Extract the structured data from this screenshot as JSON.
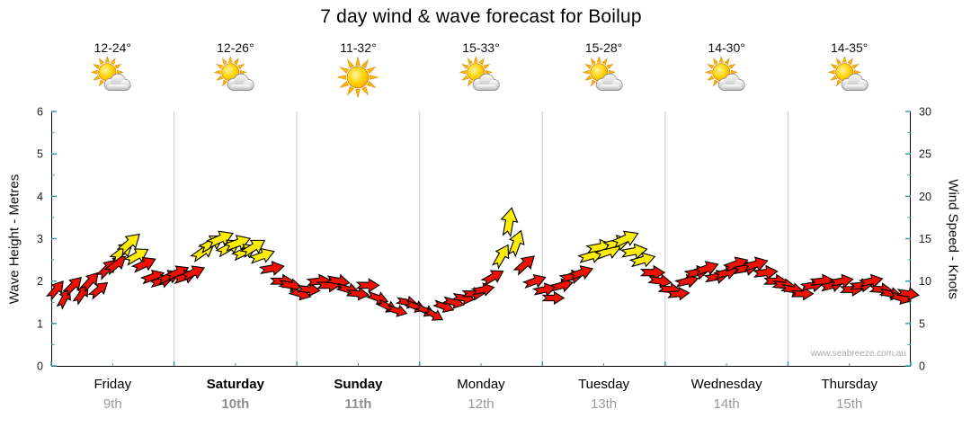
{
  "title": "7 day wind & wave forecast for Boilup",
  "watermark": "www.seabreeze.com.au",
  "colors": {
    "arrow_red": "#ee1000",
    "arrow_yellow": "#ffee00",
    "tick": "#2f9fae",
    "grid": "#cccccc",
    "axis": "#000000"
  },
  "days": [
    {
      "name": "Friday",
      "date": "9th",
      "temp": "12-24°",
      "icon": "partly-cloudy",
      "weekend": false
    },
    {
      "name": "Saturday",
      "date": "10th",
      "temp": "12-26°",
      "icon": "partly-cloudy",
      "weekend": true
    },
    {
      "name": "Sunday",
      "date": "11th",
      "temp": "11-32°",
      "icon": "sunny",
      "weekend": true
    },
    {
      "name": "Monday",
      "date": "12th",
      "temp": "15-33°",
      "icon": "partly-cloudy",
      "weekend": false
    },
    {
      "name": "Tuesday",
      "date": "13th",
      "temp": "15-28°",
      "icon": "partly-cloudy",
      "weekend": false
    },
    {
      "name": "Wednesday",
      "date": "14th",
      "temp": "14-30°",
      "icon": "partly-cloudy",
      "weekend": false
    },
    {
      "name": "Thursday",
      "date": "15th",
      "temp": "14-35°",
      "icon": "partly-cloudy",
      "weekend": false
    }
  ],
  "chart_data": {
    "type": "scatter",
    "title": "7 day wind & wave forecast for Boilup",
    "left_axis": {
      "label": "Wave Height - Metres",
      "min": 0,
      "max": 6,
      "ticks": [
        0,
        1,
        2,
        3,
        4,
        5,
        6
      ]
    },
    "right_axis": {
      "label": "Wind Speed - Knots",
      "min": 0,
      "max": 30,
      "ticks": [
        0,
        5,
        10,
        15,
        20,
        25,
        30
      ]
    },
    "x_categories": [
      "Friday 9th",
      "Saturday 10th",
      "Sunday 11th",
      "Monday 12th",
      "Tuesday 13th",
      "Wednesday 14th",
      "Thursday 15th"
    ],
    "grid": "vertical-day-lines",
    "legend": "none",
    "arrows": [
      {
        "x": 0.04,
        "knots": 9,
        "dir": -50,
        "color": "red"
      },
      {
        "x": 0.11,
        "knots": 8,
        "dir": -62,
        "color": "red"
      },
      {
        "x": 0.18,
        "knots": 9.5,
        "dir": -45,
        "color": "red"
      },
      {
        "x": 0.25,
        "knots": 8.5,
        "dir": -55,
        "color": "red"
      },
      {
        "x": 0.32,
        "knots": 10,
        "dir": -48,
        "color": "red"
      },
      {
        "x": 0.39,
        "knots": 9,
        "dir": -40,
        "color": "red"
      },
      {
        "x": 0.46,
        "knots": 11.5,
        "dir": -45,
        "color": "red"
      },
      {
        "x": 0.53,
        "knots": 12,
        "dir": -40,
        "color": "red"
      },
      {
        "x": 0.58,
        "knots": 13.5,
        "dir": -38,
        "color": "yellow"
      },
      {
        "x": 0.64,
        "knots": 14.5,
        "dir": -42,
        "color": "yellow"
      },
      {
        "x": 0.7,
        "knots": 13,
        "dir": -30,
        "color": "yellow"
      },
      {
        "x": 0.76,
        "knots": 12,
        "dir": -25,
        "color": "red"
      },
      {
        "x": 0.83,
        "knots": 10.5,
        "dir": -20,
        "color": "red"
      },
      {
        "x": 0.9,
        "knots": 10,
        "dir": -15,
        "color": "red"
      },
      {
        "x": 0.96,
        "knots": 10.5,
        "dir": -22,
        "color": "red"
      },
      {
        "x": 1.03,
        "knots": 11,
        "dir": -25,
        "color": "red"
      },
      {
        "x": 1.09,
        "knots": 10.5,
        "dir": -18,
        "color": "red"
      },
      {
        "x": 1.16,
        "knots": 11,
        "dir": -24,
        "color": "red"
      },
      {
        "x": 1.24,
        "knots": 13.5,
        "dir": -35,
        "color": "yellow"
      },
      {
        "x": 1.31,
        "knots": 14.5,
        "dir": -30,
        "color": "yellow"
      },
      {
        "x": 1.38,
        "knots": 15,
        "dir": -24,
        "color": "yellow"
      },
      {
        "x": 1.45,
        "knots": 14,
        "dir": -30,
        "color": "yellow"
      },
      {
        "x": 1.52,
        "knots": 14.5,
        "dir": -20,
        "color": "yellow"
      },
      {
        "x": 1.58,
        "knots": 13.5,
        "dir": -26,
        "color": "yellow"
      },
      {
        "x": 1.65,
        "knots": 14,
        "dir": -32,
        "color": "yellow"
      },
      {
        "x": 1.72,
        "knots": 13,
        "dir": -20,
        "color": "yellow"
      },
      {
        "x": 1.8,
        "knots": 11.5,
        "dir": -10,
        "color": "red"
      },
      {
        "x": 1.88,
        "knots": 10,
        "dir": 0,
        "color": "red"
      },
      {
        "x": 1.95,
        "knots": 9.5,
        "dir": 10,
        "color": "red"
      },
      {
        "x": 2.03,
        "knots": 8.5,
        "dir": 16,
        "color": "red"
      },
      {
        "x": 2.1,
        "knots": 9,
        "dir": 6,
        "color": "red"
      },
      {
        "x": 2.18,
        "knots": 10,
        "dir": -6,
        "color": "red"
      },
      {
        "x": 2.26,
        "knots": 9.5,
        "dir": 0,
        "color": "red"
      },
      {
        "x": 2.34,
        "knots": 10,
        "dir": 10,
        "color": "red"
      },
      {
        "x": 2.42,
        "knots": 9,
        "dir": 16,
        "color": "red"
      },
      {
        "x": 2.5,
        "knots": 8.5,
        "dir": 6,
        "color": "red"
      },
      {
        "x": 2.58,
        "knots": 9.5,
        "dir": 0,
        "color": "red"
      },
      {
        "x": 2.66,
        "knots": 8,
        "dir": 20,
        "color": "red"
      },
      {
        "x": 2.74,
        "knots": 7,
        "dir": 26,
        "color": "red"
      },
      {
        "x": 2.82,
        "knots": 6.5,
        "dir": 16,
        "color": "red"
      },
      {
        "x": 2.9,
        "knots": 7.5,
        "dir": 10,
        "color": "red"
      },
      {
        "x": 2.97,
        "knots": 7,
        "dir": 20,
        "color": "red"
      },
      {
        "x": 3.05,
        "knots": 6.5,
        "dir": 25,
        "color": "red"
      },
      {
        "x": 3.12,
        "knots": 6,
        "dir": 30,
        "color": "red"
      },
      {
        "x": 3.2,
        "knots": 7,
        "dir": 20,
        "color": "red"
      },
      {
        "x": 3.28,
        "knots": 7.5,
        "dir": 14,
        "color": "red"
      },
      {
        "x": 3.36,
        "knots": 8,
        "dir": 8,
        "color": "red"
      },
      {
        "x": 3.44,
        "knots": 8.5,
        "dir": 0,
        "color": "red"
      },
      {
        "x": 3.52,
        "knots": 9,
        "dir": -12,
        "color": "red"
      },
      {
        "x": 3.6,
        "knots": 10.5,
        "dir": -30,
        "color": "red"
      },
      {
        "x": 3.67,
        "knots": 13,
        "dir": -60,
        "color": "yellow"
      },
      {
        "x": 3.73,
        "knots": 17,
        "dir": -80,
        "color": "yellow"
      },
      {
        "x": 3.79,
        "knots": 14.5,
        "dir": -70,
        "color": "yellow"
      },
      {
        "x": 3.86,
        "knots": 12,
        "dir": -42,
        "color": "red"
      },
      {
        "x": 3.94,
        "knots": 10,
        "dir": -20,
        "color": "red"
      },
      {
        "x": 4.02,
        "knots": 9,
        "dir": -12,
        "color": "red"
      },
      {
        "x": 4.09,
        "knots": 8,
        "dir": 0,
        "color": "red"
      },
      {
        "x": 4.16,
        "knots": 9.5,
        "dir": -15,
        "color": "red"
      },
      {
        "x": 4.24,
        "knots": 10.5,
        "dir": -10,
        "color": "red"
      },
      {
        "x": 4.32,
        "knots": 11,
        "dir": -20,
        "color": "red"
      },
      {
        "x": 4.4,
        "knots": 13,
        "dir": -16,
        "color": "yellow"
      },
      {
        "x": 4.47,
        "knots": 14,
        "dir": -10,
        "color": "yellow"
      },
      {
        "x": 4.54,
        "knots": 13.5,
        "dir": -20,
        "color": "yellow"
      },
      {
        "x": 4.61,
        "knots": 14.5,
        "dir": -14,
        "color": "yellow"
      },
      {
        "x": 4.68,
        "knots": 15,
        "dir": -24,
        "color": "yellow"
      },
      {
        "x": 4.75,
        "knots": 13.5,
        "dir": -10,
        "color": "yellow"
      },
      {
        "x": 4.82,
        "knots": 12.5,
        "dir": -16,
        "color": "yellow"
      },
      {
        "x": 4.9,
        "knots": 11,
        "dir": 0,
        "color": "red"
      },
      {
        "x": 4.96,
        "knots": 10,
        "dir": 8,
        "color": "red"
      },
      {
        "x": 5.04,
        "knots": 9,
        "dir": 6,
        "color": "red"
      },
      {
        "x": 5.11,
        "knots": 8.5,
        "dir": -5,
        "color": "red"
      },
      {
        "x": 5.18,
        "knots": 10,
        "dir": -14,
        "color": "red"
      },
      {
        "x": 5.26,
        "knots": 11,
        "dir": -10,
        "color": "red"
      },
      {
        "x": 5.34,
        "knots": 11.5,
        "dir": -20,
        "color": "red"
      },
      {
        "x": 5.42,
        "knots": 10.5,
        "dir": -10,
        "color": "red"
      },
      {
        "x": 5.5,
        "knots": 11,
        "dir": -16,
        "color": "red"
      },
      {
        "x": 5.58,
        "knots": 12,
        "dir": -20,
        "color": "red"
      },
      {
        "x": 5.66,
        "knots": 11.5,
        "dir": -10,
        "color": "red"
      },
      {
        "x": 5.74,
        "knots": 12,
        "dir": -16,
        "color": "red"
      },
      {
        "x": 5.82,
        "knots": 11,
        "dir": -6,
        "color": "red"
      },
      {
        "x": 5.9,
        "knots": 10,
        "dir": 0,
        "color": "red"
      },
      {
        "x": 5.97,
        "knots": 9.5,
        "dir": 6,
        "color": "red"
      },
      {
        "x": 6.04,
        "knots": 9,
        "dir": 10,
        "color": "red"
      },
      {
        "x": 6.12,
        "knots": 8.5,
        "dir": 0,
        "color": "red"
      },
      {
        "x": 6.2,
        "knots": 9.5,
        "dir": -10,
        "color": "red"
      },
      {
        "x": 6.28,
        "knots": 10,
        "dir": -6,
        "color": "red"
      },
      {
        "x": 6.36,
        "knots": 9.5,
        "dir": -14,
        "color": "red"
      },
      {
        "x": 6.44,
        "knots": 10,
        "dir": -10,
        "color": "red"
      },
      {
        "x": 6.52,
        "knots": 9,
        "dir": 0,
        "color": "red"
      },
      {
        "x": 6.6,
        "knots": 9.5,
        "dir": -6,
        "color": "red"
      },
      {
        "x": 6.68,
        "knots": 10,
        "dir": -12,
        "color": "red"
      },
      {
        "x": 6.76,
        "knots": 9,
        "dir": 4,
        "color": "red"
      },
      {
        "x": 6.84,
        "knots": 8.5,
        "dir": 10,
        "color": "red"
      },
      {
        "x": 6.92,
        "knots": 8,
        "dir": 16,
        "color": "red"
      },
      {
        "x": 6.98,
        "knots": 8.5,
        "dir": 8,
        "color": "red"
      }
    ]
  }
}
